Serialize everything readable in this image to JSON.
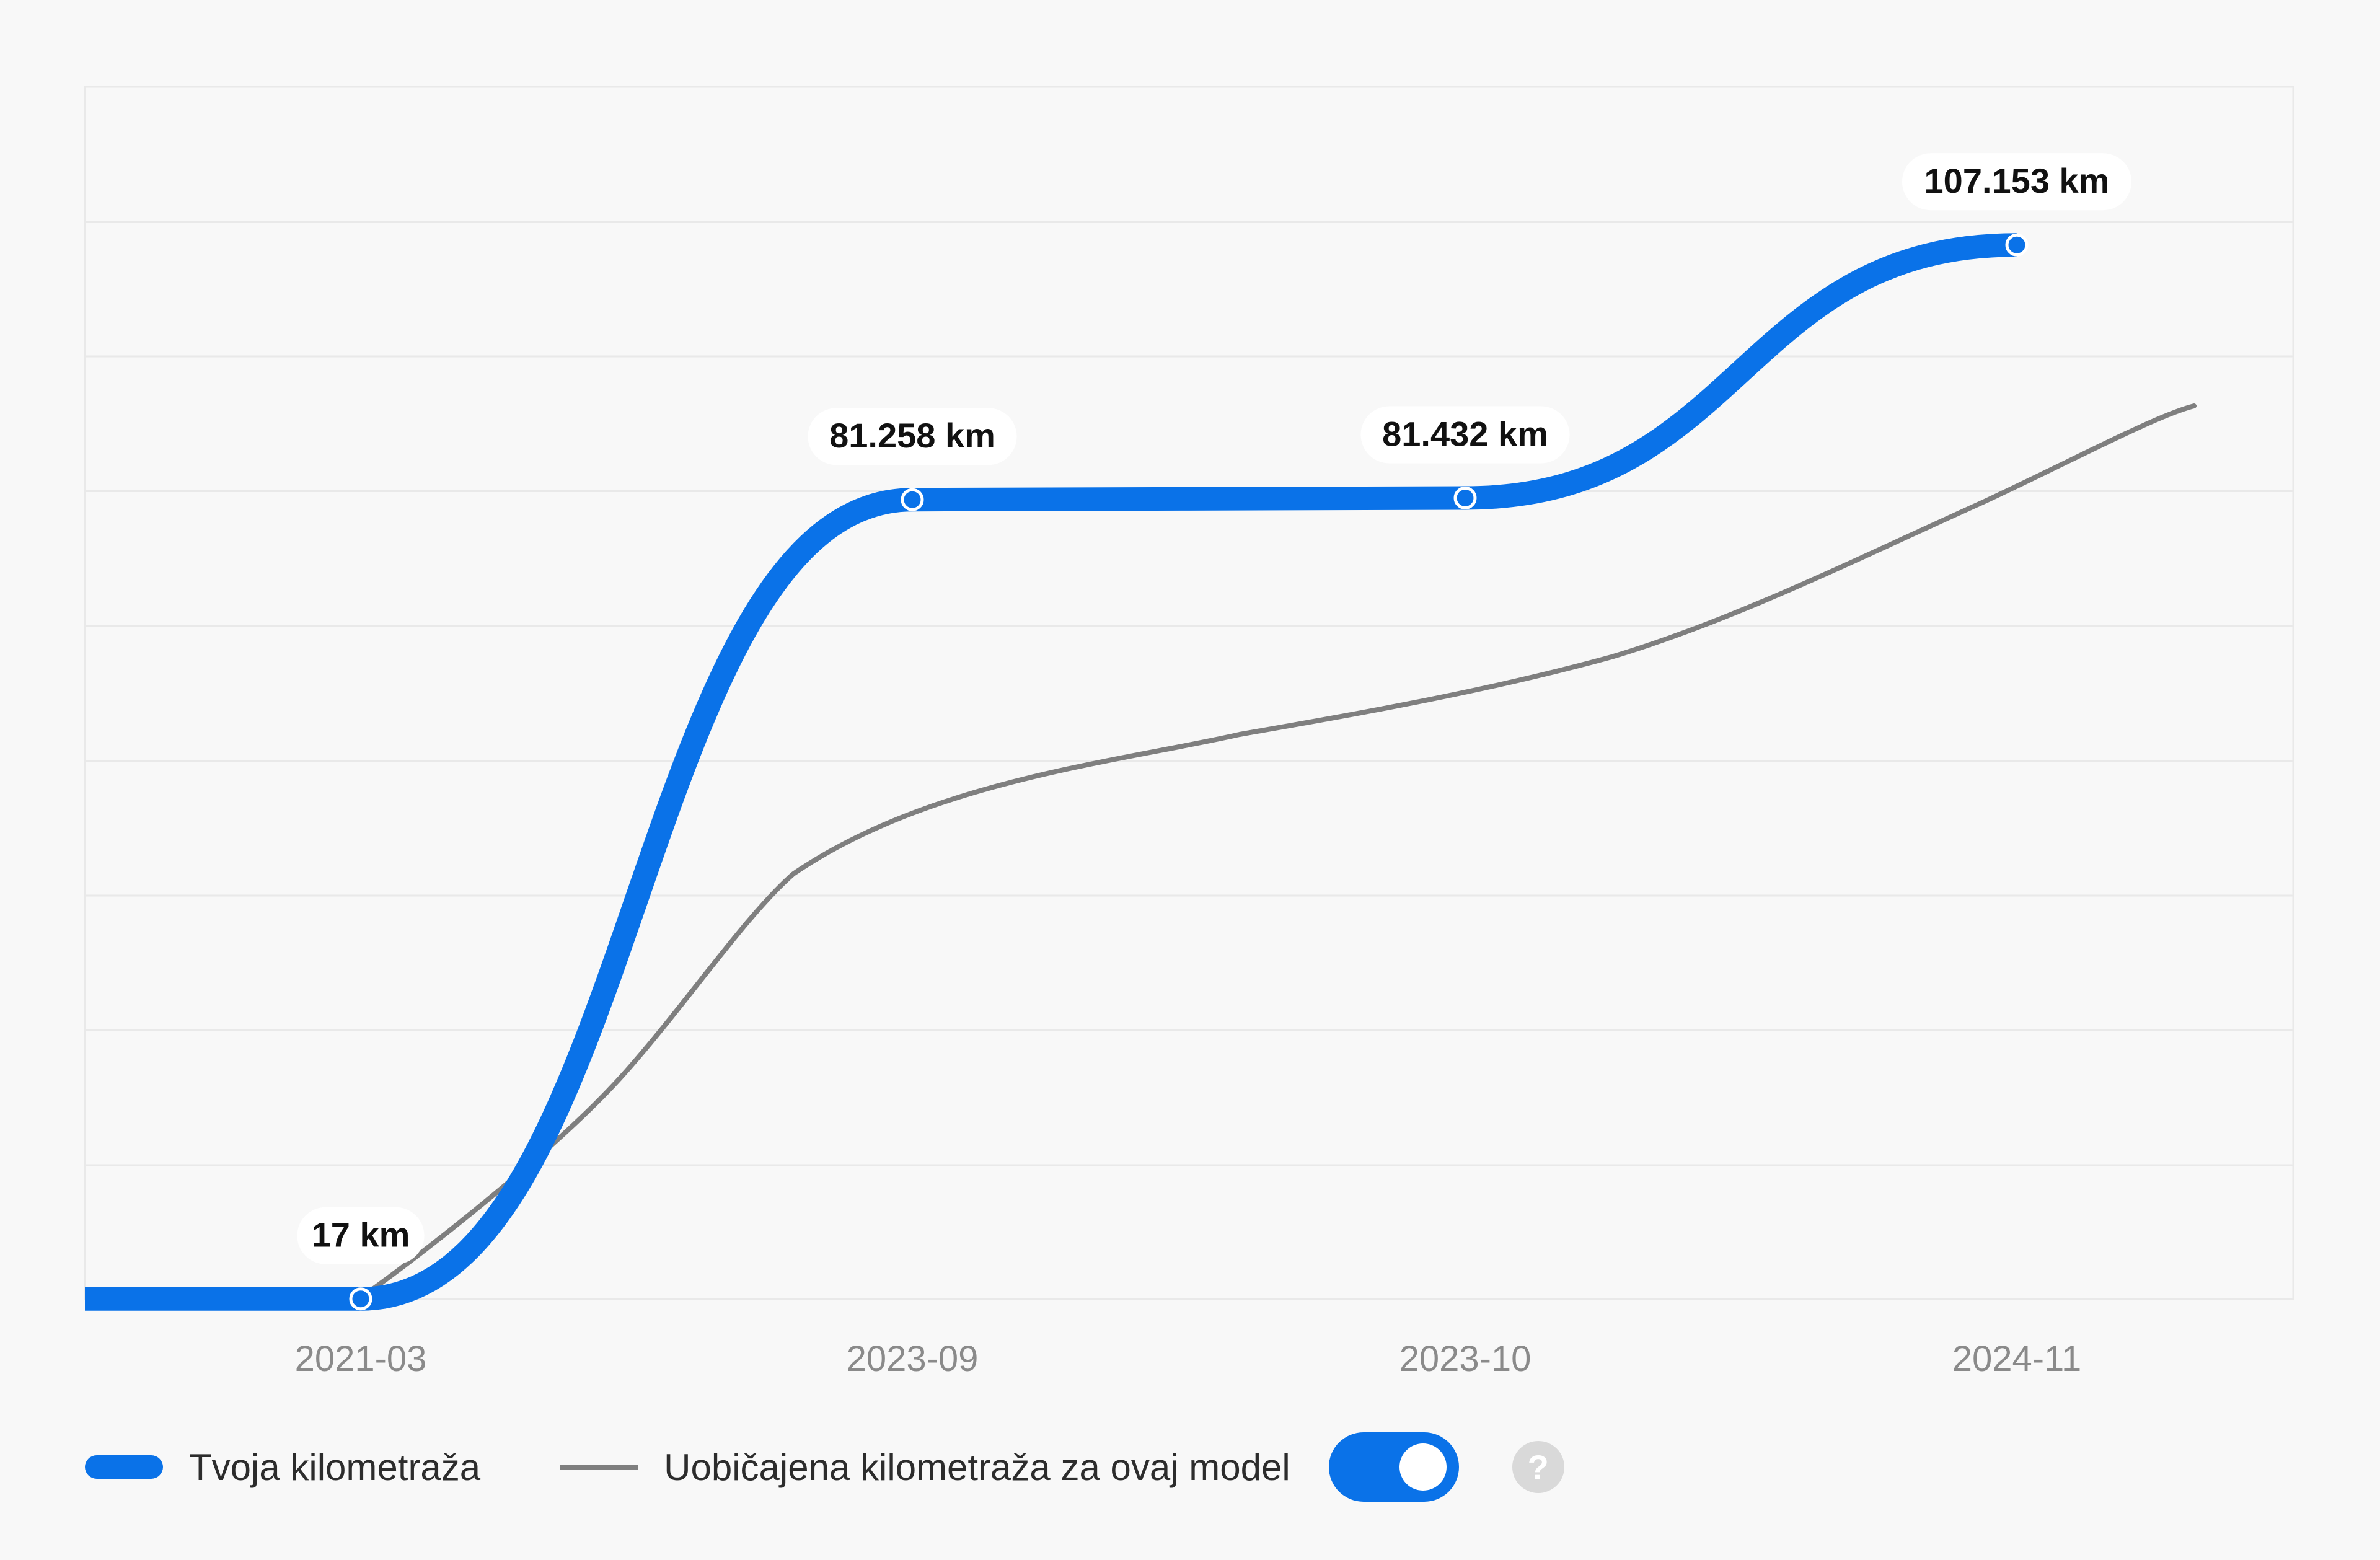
{
  "chart_data": {
    "type": "line",
    "categories": [
      "2021-03",
      "2023-09",
      "2023-10",
      "2024-11"
    ],
    "series": [
      {
        "name": "Tvoja kilometraža",
        "color": "#0a72e8",
        "values": [
          17,
          81258,
          81432,
          107153
        ],
        "labels": [
          "17 km",
          "81.258 km",
          "81.432 km",
          "107.153 km"
        ]
      },
      {
        "name": "Uobičajena kilometraža za ovaj model",
        "color": "#7f7f7f"
      }
    ],
    "grid": true,
    "legend": "bottom-left"
  },
  "legend": {
    "user_label": "Tvoja kilometraža",
    "typical_label": "Uobičajena kilometraža za ovaj model"
  },
  "toggle": {
    "on": true
  },
  "help": {
    "glyph": "?",
    "icon": "question-icon"
  }
}
